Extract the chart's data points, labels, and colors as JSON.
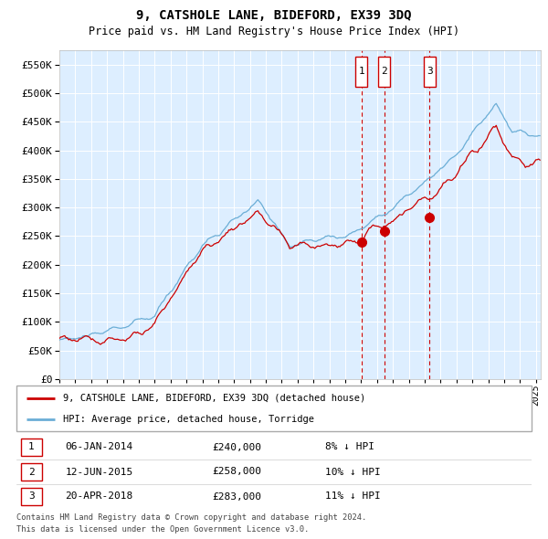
{
  "title": "9, CATSHOLE LANE, BIDEFORD, EX39 3DQ",
  "subtitle": "Price paid vs. HM Land Registry's House Price Index (HPI)",
  "legend_line1": "9, CATSHOLE LANE, BIDEFORD, EX39 3DQ (detached house)",
  "legend_line2": "HPI: Average price, detached house, Torridge",
  "transactions": [
    {
      "num": 1,
      "date": "06-JAN-2014",
      "price": 240000,
      "pct": "8%",
      "dir": "↓"
    },
    {
      "num": 2,
      "date": "12-JUN-2015",
      "price": 258000,
      "pct": "10%",
      "dir": "↓"
    },
    {
      "num": 3,
      "date": "20-APR-2018",
      "price": 283000,
      "pct": "11%",
      "dir": "↓"
    }
  ],
  "transaction_dates_decimal": [
    2014.02,
    2015.45,
    2018.3
  ],
  "transaction_prices": [
    240000,
    258000,
    283000
  ],
  "footer1": "Contains HM Land Registry data © Crown copyright and database right 2024.",
  "footer2": "This data is licensed under the Open Government Licence v3.0.",
  "hpi_color": "#6baed6",
  "property_color": "#cc0000",
  "dot_color": "#cc0000",
  "vline_color": "#cc0000",
  "background_color": "#ddeeff",
  "ylim": [
    0,
    575000
  ],
  "yticks": [
    0,
    50000,
    100000,
    150000,
    200000,
    250000,
    300000,
    350000,
    400000,
    450000,
    500000,
    550000
  ],
  "xlim_start": 1995.0,
  "xlim_end": 2025.3
}
